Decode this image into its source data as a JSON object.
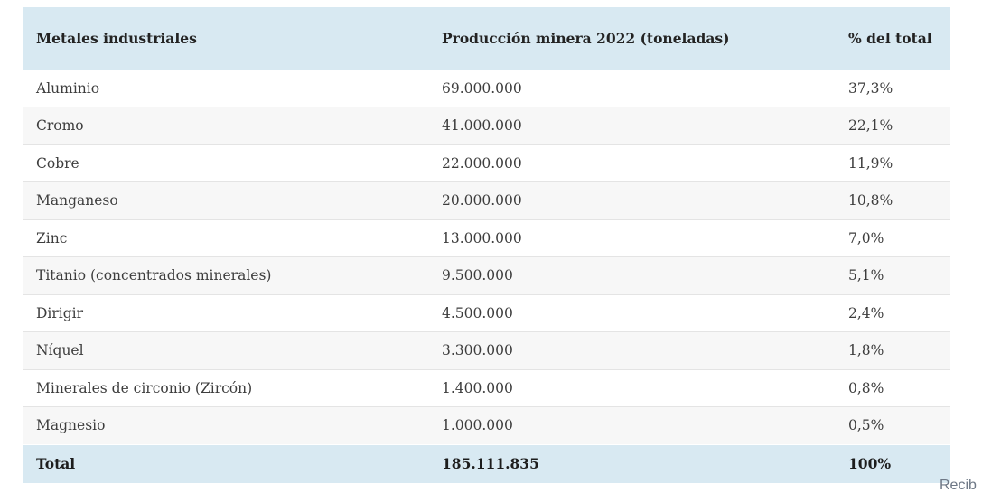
{
  "table": {
    "columns": [
      "Metales industriales",
      "Producción minera 2022 (toneladas)",
      "% del total"
    ],
    "rows": [
      {
        "metal": "Aluminio",
        "production": "69.000.000",
        "percent": "37,3%"
      },
      {
        "metal": "Cromo",
        "production": "41.000.000",
        "percent": "22,1%"
      },
      {
        "metal": "Cobre",
        "production": "22.000.000",
        "percent": "11,9%"
      },
      {
        "metal": "Manganeso",
        "production": "20.000.000",
        "percent": "10,8%"
      },
      {
        "metal": "Zinc",
        "production": "13.000.000",
        "percent": "7,0%"
      },
      {
        "metal": "Titanio (concentrados minerales)",
        "production": "9.500.000",
        "percent": "5,1%"
      },
      {
        "metal": "Dirigir",
        "production": "4.500.000",
        "percent": "2,4%"
      },
      {
        "metal": "Níquel",
        "production": "3.300.000",
        "percent": "1,8%"
      },
      {
        "metal": "Minerales de circonio (Zircón)",
        "production": "1.400.000",
        "percent": "0,8%"
      },
      {
        "metal": "Magnesio",
        "production": "1.000.000",
        "percent": "0,5%"
      }
    ],
    "total": {
      "label": "Total",
      "production": "185.111.835",
      "percent": "100%"
    }
  },
  "colors": {
    "header_bg": "#d8e9f2",
    "total_bg": "#d8e9f2",
    "stripe_bg": "#f7f7f7",
    "row_border": "#e4e4e4",
    "body_text": "#3d3d3d",
    "header_text": "#232323",
    "partial_text_color": "#6e7886"
  },
  "footer": {
    "partial_text": "Recib"
  }
}
